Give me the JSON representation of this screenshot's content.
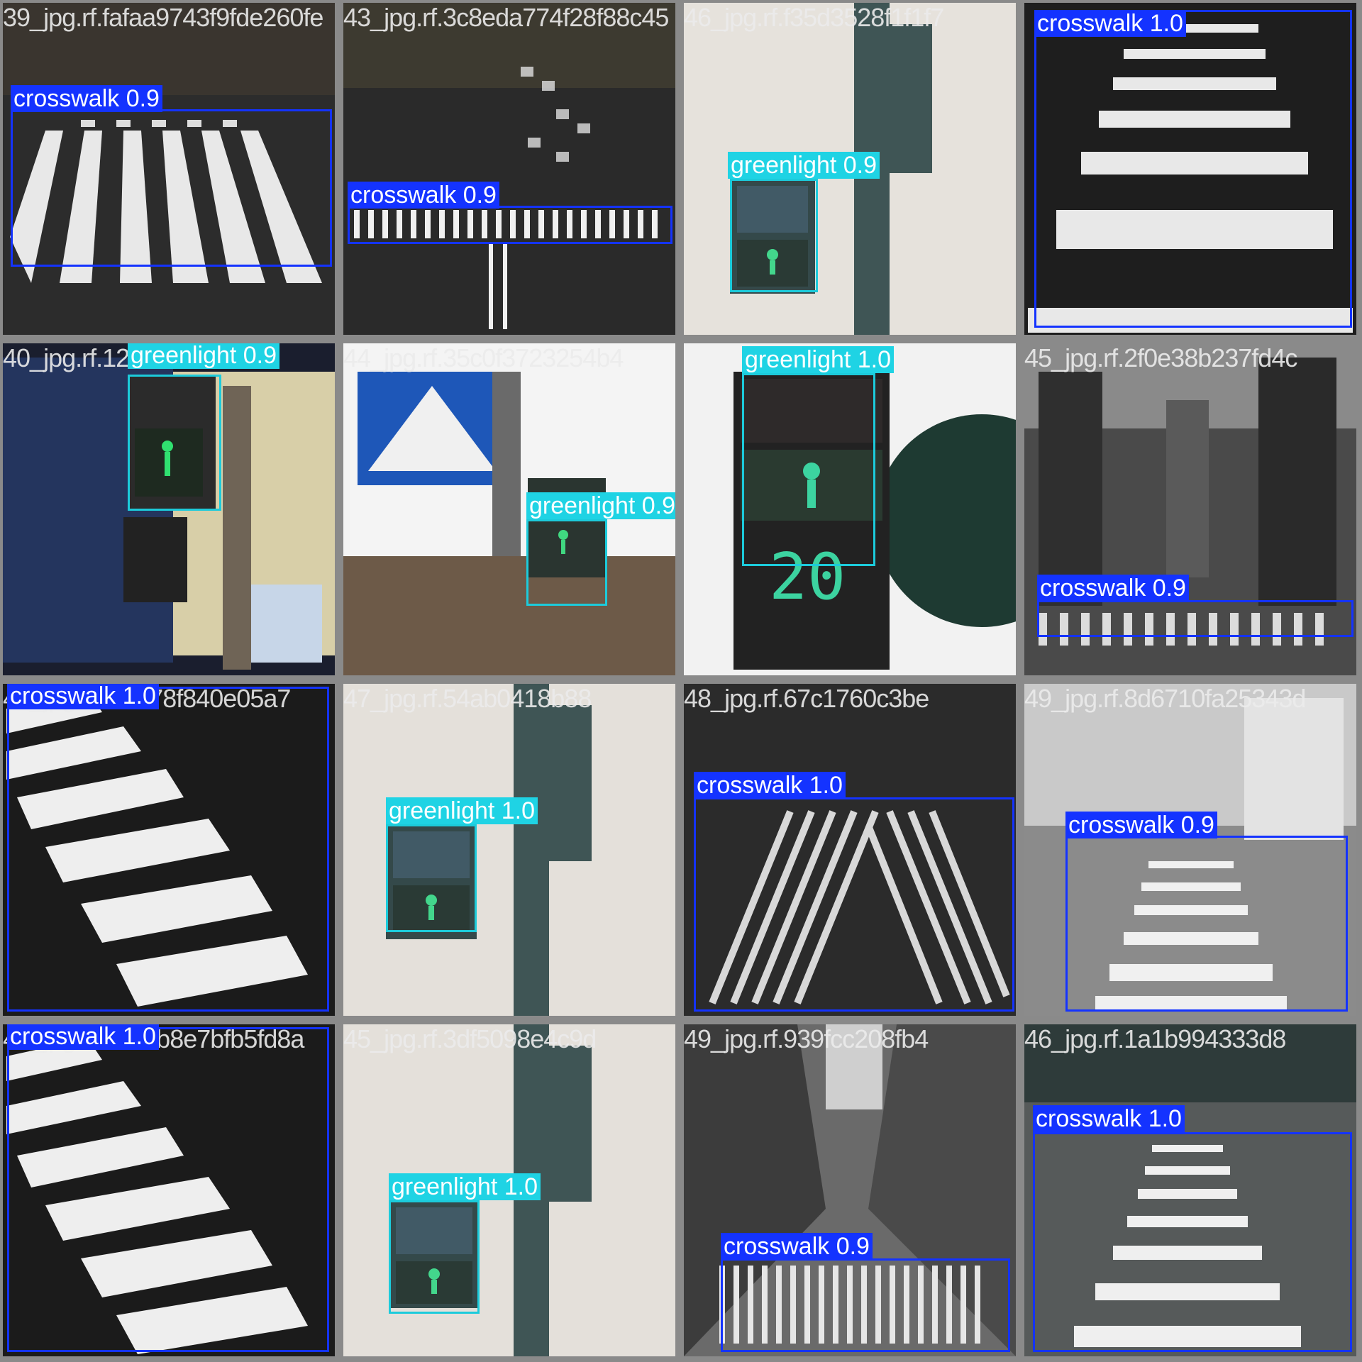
{
  "colors": {
    "crosswalk": "#1433ff",
    "greenlight": "#1fd3e4",
    "tile_border": "#7f7f7f"
  },
  "tiles": [
    {
      "filename": "39_jpg.rf.fafaa9743f9fde260fe",
      "detections": [
        {
          "label": "crosswalk 0.9",
          "cls": "crosswalk",
          "score": 0.9
        }
      ]
    },
    {
      "filename": "43_jpg.rf.3c8eda774f28f88c45",
      "detections": [
        {
          "label": "crosswalk 0.9",
          "cls": "crosswalk",
          "score": 0.9
        }
      ]
    },
    {
      "filename": "46_jpg.rf.f35d3528f1f1f7",
      "detections": [
        {
          "label": "greenlight 0.9",
          "cls": "greenlight",
          "score": 0.9
        }
      ]
    },
    {
      "filename": "",
      "detections": [
        {
          "label": "crosswalk 1.0",
          "cls": "crosswalk",
          "score": 1.0
        }
      ]
    },
    {
      "filename": "40_jpg.rf.12af6a9c",
      "detections": [
        {
          "label": "greenlight 0.9",
          "cls": "greenlight",
          "score": 0.9
        }
      ]
    },
    {
      "filename": "44_jpg.rf.35c0f3723254b4",
      "detections": [
        {
          "label": "greenlight 0.9",
          "cls": "greenlight",
          "score": 0.9
        }
      ]
    },
    {
      "filename": "",
      "detections": [
        {
          "label": "greenlight 1.0",
          "cls": "greenlight",
          "score": 1.0
        }
      ]
    },
    {
      "filename": "45_jpg.rf.2f0e38b237fd4c",
      "detections": [
        {
          "label": "crosswalk 0.9",
          "cls": "crosswalk",
          "score": 0.9
        }
      ]
    },
    {
      "filename": "41_jpg.rf.7daf78f840e05a7",
      "detections": [
        {
          "label": "crosswalk 1.0",
          "cls": "crosswalk",
          "score": 1.0
        }
      ]
    },
    {
      "filename": "47_jpg.rf.54ab0418b88",
      "detections": [
        {
          "label": "greenlight 1.0",
          "cls": "greenlight",
          "score": 1.0
        }
      ]
    },
    {
      "filename": "48_jpg.rf.67c1760c3be",
      "detections": [
        {
          "label": "crosswalk 1.0",
          "cls": "crosswalk",
          "score": 1.0
        }
      ]
    },
    {
      "filename": "49_jpg.rf.8d6710fa25343d",
      "detections": [
        {
          "label": "crosswalk 0.9",
          "cls": "crosswalk",
          "score": 0.9
        }
      ]
    },
    {
      "filename": "41_jpg.rf.e575b8e7bfb5fd8a",
      "detections": [
        {
          "label": "crosswalk 1.0",
          "cls": "crosswalk",
          "score": 1.0
        }
      ]
    },
    {
      "filename": "45_jpg.rf.3df5098e4c9d",
      "detections": [
        {
          "label": "greenlight 1.0",
          "cls": "greenlight",
          "score": 1.0
        }
      ]
    },
    {
      "filename": "49_jpg.rf.939fcc208fb4",
      "detections": [
        {
          "label": "crosswalk 0.9",
          "cls": "crosswalk",
          "score": 0.9
        }
      ]
    },
    {
      "filename": "46_jpg.rf.1a1b994333d8",
      "detections": [
        {
          "label": "crosswalk 1.0",
          "cls": "crosswalk",
          "score": 1.0
        }
      ]
    }
  ]
}
